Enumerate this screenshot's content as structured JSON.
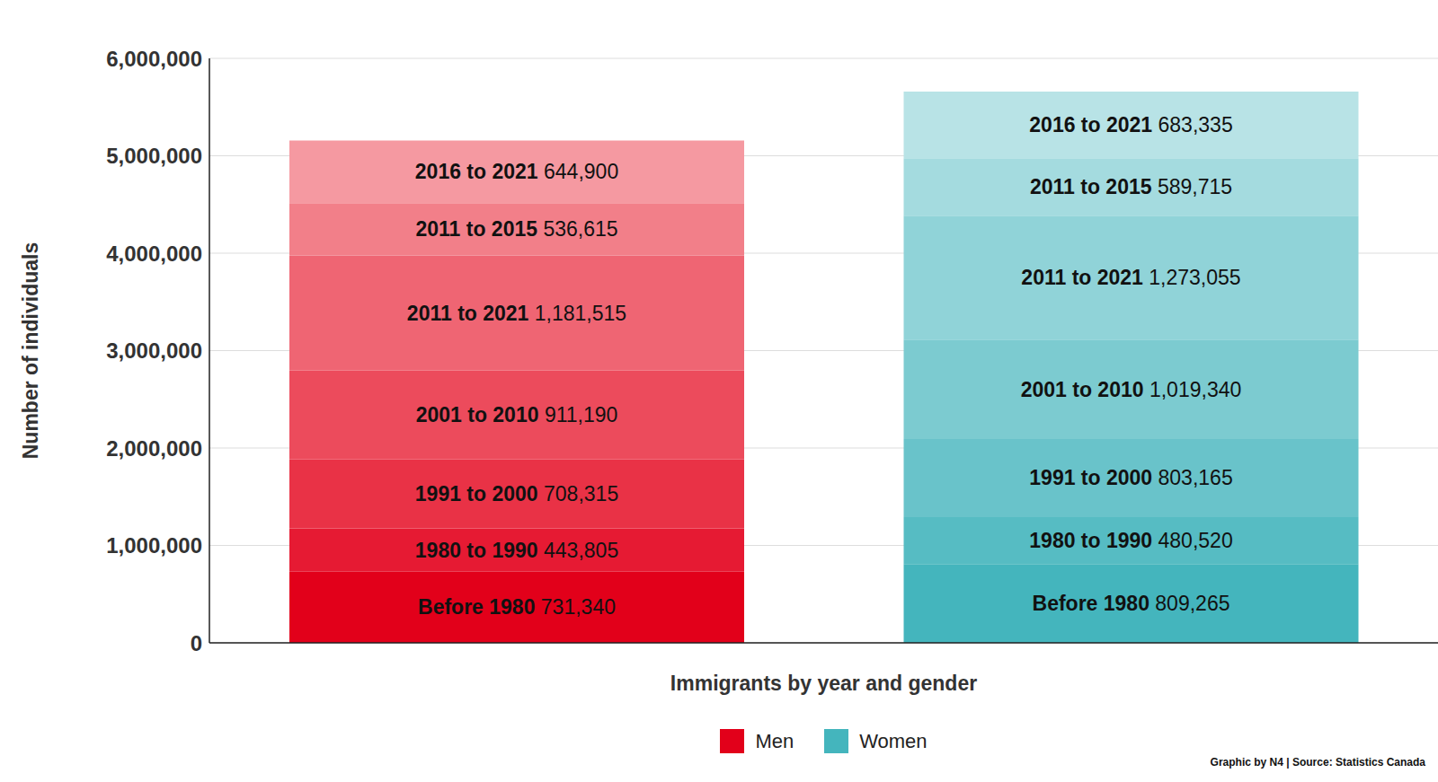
{
  "chart_data": {
    "type": "bar",
    "stacked": true,
    "data_labels": true,
    "grid": true,
    "tick_labels": "y",
    "legend": "bottom",
    "x_label": "Immigrants by year and gender",
    "y_label": "Number of individuals",
    "source": "Graphic by N4 | Source: Statistics Canada",
    "categories": [
      "Men",
      "Women"
    ],
    "colors": [
      "#e2001a",
      "#44b5bd"
    ],
    "ylim": [
      0,
      6000000
    ],
    "yticks": [
      0,
      {
        "value": 1000000,
        "label": "1,000,000"
      },
      {
        "value": 2000000,
        "label": "2,000,000"
      },
      {
        "value": 3000000,
        "label": "3,000,000"
      },
      {
        "value": 4000000,
        "label": "4,000,000"
      },
      {
        "value": 5000000,
        "label": "5,000,000"
      },
      {
        "value": 6000000,
        "label": "6,000,000"
      }
    ],
    "series": [
      {
        "name": "Before 1980",
        "colors": [
          "#e2001a",
          "#44b5bd"
        ],
        "values": [
          731340,
          809265
        ],
        "value_labels": [
          "731,340",
          "809,265"
        ]
      },
      {
        "name": "1980 to 1990",
        "colors": [
          "#e61a33",
          "#56bcc3"
        ],
        "values": [
          443805,
          480520
        ],
        "value_labels": [
          "443,805",
          "480,520"
        ]
      },
      {
        "name": "1991 to 2000",
        "colors": [
          "#e93246",
          "#69c3ca"
        ],
        "values": [
          708315,
          803165
        ],
        "value_labels": [
          "708,315",
          "803,165"
        ]
      },
      {
        "name": "2001 to 2010",
        "colors": [
          "#ec4b5c",
          "#7ccbd0"
        ],
        "values": [
          911190,
          1019340
        ],
        "value_labels": [
          "911,190",
          "1,019,340"
        ]
      },
      {
        "name": "2011 to 2021",
        "colors": [
          "#ef6573",
          "#90d3d8"
        ],
        "values": [
          1181515,
          1273055
        ],
        "value_labels": [
          "1,181,515",
          "1,273,055"
        ]
      },
      {
        "name": "2011 to 2015",
        "colors": [
          "#f27f89",
          "#a4dbdf"
        ],
        "values": [
          536615,
          589715
        ],
        "value_labels": [
          "536,615",
          "589,715"
        ]
      },
      {
        "name": "2016 to 2021",
        "colors": [
          "#f599a1",
          "#b8e3e6"
        ],
        "values": [
          644900,
          683335
        ],
        "value_labels": [
          "644,900",
          "683,335"
        ]
      }
    ]
  }
}
